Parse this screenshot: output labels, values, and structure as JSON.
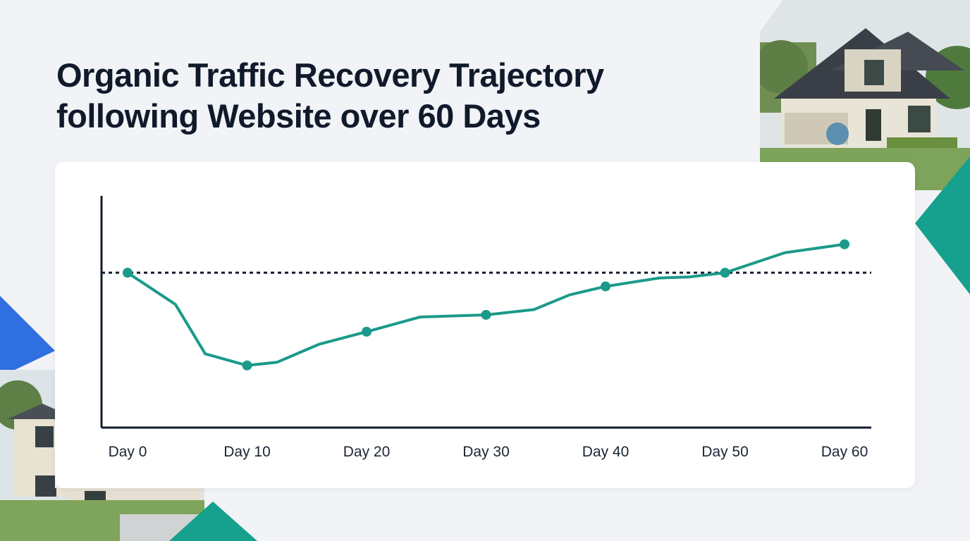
{
  "page": {
    "title_line1": "Organic Traffic Recovery Trajectory",
    "title_line2": "following Website over 60 Days"
  },
  "colors": {
    "background": "#f1f3f6",
    "line": "#1a9a8a",
    "axis": "#111a2b",
    "accent_teal": "#16a08e",
    "accent_blue": "#2f6fe0"
  },
  "decorations": {
    "top_right_photo": "suburban-house-photo",
    "bottom_left_photo": "suburban-house-photo"
  },
  "chart_data": {
    "type": "line",
    "title": "",
    "xlabel": "",
    "ylabel": "",
    "x_tick_labels": [
      "Day 0",
      "Day 10",
      "Day 20",
      "Day 30",
      "Day 40",
      "Day 50",
      "Day 60"
    ],
    "xlim": [
      0,
      64
    ],
    "ylim": [
      0,
      110
    ],
    "baseline": 73.5,
    "grid": false,
    "legend": "none",
    "series": [
      {
        "x": [
          0,
          4,
          6.5,
          10,
          12.5,
          16,
          20,
          24.5,
          30,
          34,
          37,
          40,
          44.5,
          47,
          50,
          55,
          60
        ],
        "y": [
          73.5,
          58.5,
          35,
          29.5,
          31,
          39.5,
          45.5,
          52.5,
          53.5,
          56,
          63,
          67,
          71,
          71.5,
          73.5,
          83,
          87
        ],
        "markers_at": [
          0,
          10,
          20,
          30,
          40,
          50,
          60
        ]
      }
    ]
  }
}
